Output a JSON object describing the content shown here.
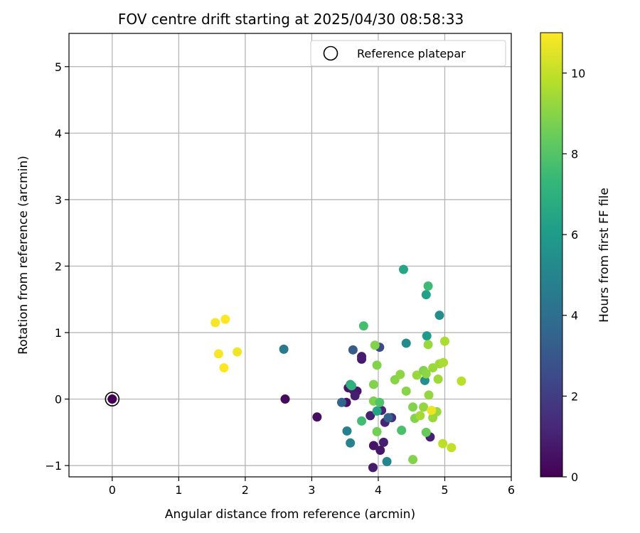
{
  "chart_data": {
    "type": "scatter",
    "title": "FOV centre drift starting at 2025/04/30 08:58:33",
    "xlabel": "Angular distance from reference (arcmin)",
    "ylabel": "Rotation from reference (arcmin)",
    "xlim": [
      -0.65,
      6
    ],
    "ylim": [
      -1.17,
      5.5
    ],
    "xticks": [
      0,
      1,
      2,
      3,
      4,
      5,
      6
    ],
    "yticks": [
      -1,
      0,
      1,
      2,
      3,
      4,
      5
    ],
    "grid": true,
    "legend": {
      "placement": "top-right",
      "entries": [
        "Reference platepar"
      ]
    },
    "colorbar": {
      "label": "Hours from first FF file",
      "colormap": "viridis",
      "range": [
        0,
        11
      ],
      "ticks": [
        0,
        2,
        4,
        6,
        8,
        10
      ]
    },
    "reference": {
      "x": 0,
      "y": 0
    },
    "points": [
      {
        "x": 0.0,
        "y": 0.0,
        "c": 0.0
      },
      {
        "x": 2.6,
        "y": 0.0,
        "c": 0.3
      },
      {
        "x": 3.08,
        "y": -0.27,
        "c": 0.4
      },
      {
        "x": 3.52,
        "y": -0.05,
        "c": 0.5
      },
      {
        "x": 3.55,
        "y": 0.17,
        "c": 0.6
      },
      {
        "x": 3.62,
        "y": 0.14,
        "c": 0.8
      },
      {
        "x": 3.68,
        "y": 0.12,
        "c": 0.7
      },
      {
        "x": 3.65,
        "y": 0.05,
        "c": 0.9
      },
      {
        "x": 3.75,
        "y": 0.6,
        "c": 0.7
      },
      {
        "x": 3.75,
        "y": 0.64,
        "c": 0.9
      },
      {
        "x": 3.88,
        "y": -0.25,
        "c": 1.0
      },
      {
        "x": 3.93,
        "y": -0.7,
        "c": 0.6
      },
      {
        "x": 3.92,
        "y": -1.03,
        "c": 0.8
      },
      {
        "x": 4.03,
        "y": -0.77,
        "c": 0.7
      },
      {
        "x": 4.08,
        "y": -0.65,
        "c": 0.9
      },
      {
        "x": 4.1,
        "y": -0.35,
        "c": 1.1
      },
      {
        "x": 4.05,
        "y": -0.17,
        "c": 1.2
      },
      {
        "x": 4.2,
        "y": -0.28,
        "c": 1.5
      },
      {
        "x": 4.78,
        "y": -0.57,
        "c": 1.0
      },
      {
        "x": 4.02,
        "y": 0.78,
        "c": 2.5
      },
      {
        "x": 3.62,
        "y": 0.74,
        "c": 3.2
      },
      {
        "x": 4.15,
        "y": -0.28,
        "c": 3.5
      },
      {
        "x": 3.45,
        "y": -0.05,
        "c": 3.6
      },
      {
        "x": 2.58,
        "y": 0.75,
        "c": 4.5
      },
      {
        "x": 3.53,
        "y": -0.48,
        "c": 4.8
      },
      {
        "x": 3.58,
        "y": -0.66,
        "c": 4.9
      },
      {
        "x": 4.13,
        "y": -0.94,
        "c": 5.1
      },
      {
        "x": 4.42,
        "y": 0.84,
        "c": 5.3
      },
      {
        "x": 4.92,
        "y": 1.26,
        "c": 5.4
      },
      {
        "x": 4.7,
        "y": 0.28,
        "c": 5.5
      },
      {
        "x": 4.73,
        "y": 0.95,
        "c": 6.0
      },
      {
        "x": 4.72,
        "y": 1.57,
        "c": 6.2
      },
      {
        "x": 4.38,
        "y": 1.95,
        "c": 6.5
      },
      {
        "x": 3.98,
        "y": -0.18,
        "c": 6.4
      },
      {
        "x": 3.58,
        "y": 0.22,
        "c": 6.8
      },
      {
        "x": 3.6,
        "y": 0.2,
        "c": 7.0
      },
      {
        "x": 4.75,
        "y": 1.7,
        "c": 7.5
      },
      {
        "x": 3.78,
        "y": 1.1,
        "c": 7.7
      },
      {
        "x": 3.75,
        "y": -0.33,
        "c": 7.6
      },
      {
        "x": 4.35,
        "y": -0.47,
        "c": 7.8
      },
      {
        "x": 4.72,
        "y": -0.5,
        "c": 8.4
      },
      {
        "x": 3.98,
        "y": -0.49,
        "c": 8.6
      },
      {
        "x": 3.93,
        "y": -0.03,
        "c": 8.8
      },
      {
        "x": 4.02,
        "y": -0.05,
        "c": 7.9
      },
      {
        "x": 3.98,
        "y": 0.51,
        "c": 8.9
      },
      {
        "x": 3.95,
        "y": 0.81,
        "c": 8.9
      },
      {
        "x": 3.93,
        "y": 0.22,
        "c": 8.9
      },
      {
        "x": 4.42,
        "y": 0.12,
        "c": 9.0
      },
      {
        "x": 4.52,
        "y": -0.12,
        "c": 8.9
      },
      {
        "x": 4.55,
        "y": -0.29,
        "c": 8.9
      },
      {
        "x": 4.52,
        "y": -0.91,
        "c": 8.9
      },
      {
        "x": 4.25,
        "y": 0.29,
        "c": 9.0
      },
      {
        "x": 4.33,
        "y": 0.37,
        "c": 9.1
      },
      {
        "x": 4.58,
        "y": 0.36,
        "c": 9.3
      },
      {
        "x": 4.68,
        "y": 0.43,
        "c": 8.9
      },
      {
        "x": 4.72,
        "y": 0.38,
        "c": 9.1
      },
      {
        "x": 4.76,
        "y": 0.06,
        "c": 9.2
      },
      {
        "x": 4.68,
        "y": -0.12,
        "c": 9.2
      },
      {
        "x": 4.82,
        "y": -0.28,
        "c": 9.3
      },
      {
        "x": 4.88,
        "y": -0.19,
        "c": 9.3
      },
      {
        "x": 4.63,
        "y": -0.25,
        "c": 9.5
      },
      {
        "x": 4.82,
        "y": 0.47,
        "c": 9.3
      },
      {
        "x": 4.9,
        "y": 0.3,
        "c": 9.4
      },
      {
        "x": 4.92,
        "y": 0.53,
        "c": 9.4
      },
      {
        "x": 4.98,
        "y": 0.55,
        "c": 9.6
      },
      {
        "x": 5.0,
        "y": 0.87,
        "c": 9.6
      },
      {
        "x": 4.75,
        "y": 0.82,
        "c": 9.3
      },
      {
        "x": 4.97,
        "y": -0.67,
        "c": 9.9
      },
      {
        "x": 5.1,
        "y": -0.73,
        "c": 10.0
      },
      {
        "x": 5.25,
        "y": 0.27,
        "c": 9.8
      },
      {
        "x": 4.8,
        "y": -0.17,
        "c": 10.7
      },
      {
        "x": 1.55,
        "y": 1.15,
        "c": 10.9
      },
      {
        "x": 1.7,
        "y": 1.2,
        "c": 11.0
      },
      {
        "x": 1.6,
        "y": 0.68,
        "c": 10.9
      },
      {
        "x": 1.68,
        "y": 0.47,
        "c": 11.0
      },
      {
        "x": 1.88,
        "y": 0.71,
        "c": 10.8
      }
    ]
  }
}
